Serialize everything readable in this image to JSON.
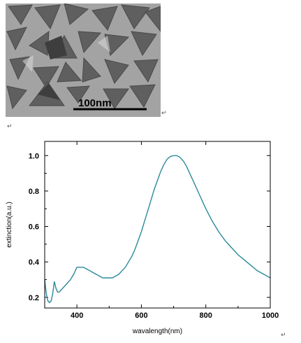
{
  "figure": {
    "scale_bar_label": "100nm",
    "paragraph_mark": "↵"
  },
  "chart_data": {
    "type": "line",
    "title": "",
    "xlabel": "wavalength(nm)",
    "ylabel": "extinction(a.u.)",
    "xlim": [
      300,
      1000
    ],
    "ylim": [
      0.14,
      1.08
    ],
    "xticks": [
      400,
      600,
      800,
      1000
    ],
    "yticks": [
      0.2,
      0.4,
      0.6,
      0.8,
      1.0
    ],
    "ytick_labels": [
      "0.2",
      "0.4",
      "0.6",
      "0.8",
      "1.0"
    ],
    "grid": false,
    "legend": "none",
    "series_color": "#2a8a9a",
    "series": [
      {
        "x": [
          300,
          305,
          310,
          315,
          320,
          325,
          330,
          335,
          340,
          345,
          350,
          360,
          370,
          380,
          390,
          400,
          410,
          420,
          430,
          440,
          450,
          460,
          470,
          480,
          490,
          500,
          510,
          520,
          530,
          540,
          550,
          560,
          570,
          580,
          590,
          600,
          610,
          620,
          630,
          640,
          650,
          660,
          670,
          680,
          690,
          700,
          710,
          720,
          730,
          740,
          750,
          760,
          770,
          780,
          790,
          800,
          820,
          840,
          860,
          880,
          900,
          920,
          940,
          960,
          980,
          1000
        ],
        "y": [
          0.3,
          0.22,
          0.18,
          0.17,
          0.18,
          0.22,
          0.29,
          0.25,
          0.23,
          0.23,
          0.24,
          0.26,
          0.28,
          0.3,
          0.33,
          0.37,
          0.37,
          0.37,
          0.36,
          0.35,
          0.34,
          0.33,
          0.32,
          0.31,
          0.31,
          0.31,
          0.31,
          0.32,
          0.33,
          0.35,
          0.37,
          0.4,
          0.43,
          0.47,
          0.52,
          0.57,
          0.63,
          0.69,
          0.75,
          0.81,
          0.86,
          0.91,
          0.95,
          0.98,
          0.995,
          1.0,
          1.0,
          0.99,
          0.97,
          0.94,
          0.9,
          0.86,
          0.82,
          0.78,
          0.74,
          0.7,
          0.63,
          0.57,
          0.52,
          0.48,
          0.44,
          0.41,
          0.38,
          0.35,
          0.33,
          0.31
        ]
      }
    ]
  }
}
